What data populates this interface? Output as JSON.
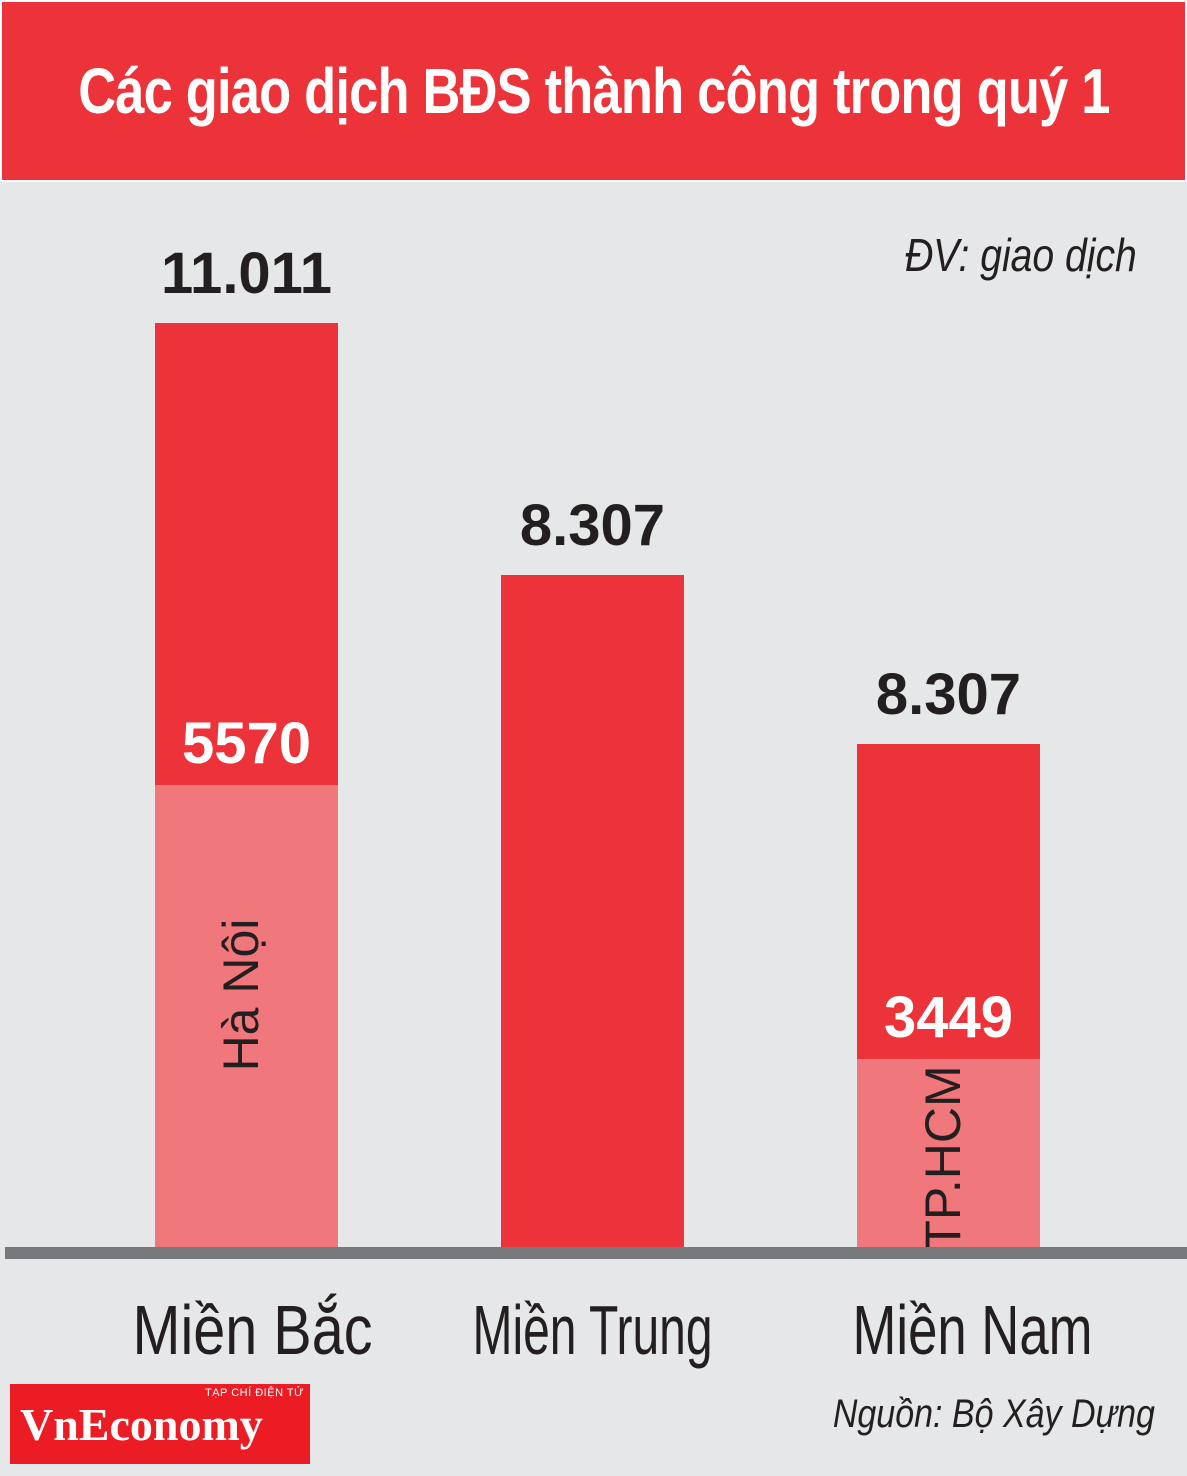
{
  "title": "Các giao dịch BĐS thành công trong quý 1",
  "unit_label": "ĐV: giao dịch",
  "source": "Nguồn: Bộ Xây Dựng",
  "logo": {
    "text": "VnEconomy",
    "subtext": "TẠP CHÍ ĐIỆN TỬ"
  },
  "colors": {
    "total": "#ec3339",
    "city": "#f0787c",
    "axis": "#77787b",
    "header": "#ec3339"
  },
  "chart_data": {
    "type": "bar",
    "categories": [
      "Miền Bắc",
      "Miền Trung",
      "Miền Nam"
    ],
    "series": [
      {
        "values": [
          11011,
          8307,
          8307
        ],
        "labels": [
          "11.011",
          "8.307",
          "8.307"
        ]
      },
      {
        "values": [
          5570,
          null,
          3449
        ],
        "labels": [
          "5570",
          "",
          "3449"
        ],
        "names": [
          "Hà Nội",
          "",
          "TP.HCM"
        ]
      }
    ],
    "ylim": [
      0,
      13000
    ],
    "grid": false,
    "legend": "none"
  }
}
